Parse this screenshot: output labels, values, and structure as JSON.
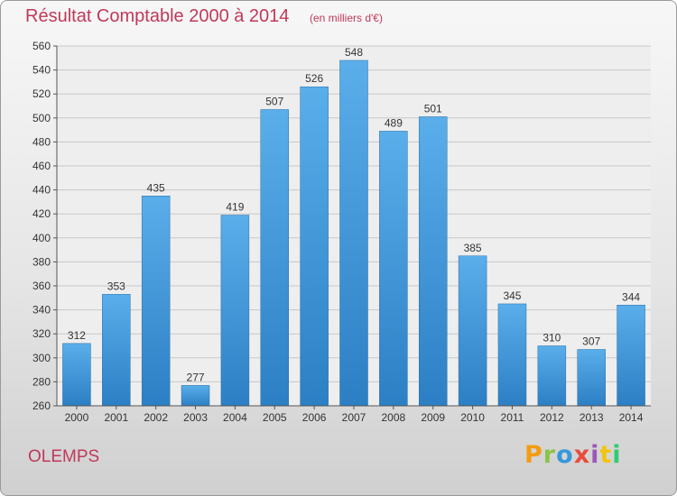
{
  "header": {
    "title": "Résultat Comptable 2000 à 2014",
    "unit": "(en milliers d'€)"
  },
  "footer": {
    "place": "OLEMPS",
    "logo": "Proxiti"
  },
  "colors": {
    "title": "#c0395a",
    "bar_top": "#5aaeea",
    "bar_bottom": "#2c7fc4",
    "logo": [
      "#f39c12",
      "#8bc34a",
      "#3498db",
      "#e74c3c",
      "#9b59b6",
      "#f1c40f",
      "#2ecc71"
    ]
  },
  "chart_data": {
    "type": "bar",
    "categories": [
      "2000",
      "2001",
      "2002",
      "2003",
      "2004",
      "2005",
      "2006",
      "2007",
      "2008",
      "2009",
      "2010",
      "2011",
      "2012",
      "2013",
      "2014"
    ],
    "values": [
      312,
      353,
      435,
      277,
      419,
      507,
      526,
      548,
      489,
      501,
      385,
      345,
      310,
      307,
      344
    ],
    "title": "Résultat Comptable 2000 à 2014",
    "xlabel": "",
    "ylabel": "",
    "ylim": [
      260,
      560
    ],
    "yticks": [
      260,
      280,
      300,
      320,
      340,
      360,
      380,
      400,
      420,
      440,
      460,
      480,
      500,
      520,
      540,
      560
    ],
    "grid": true,
    "legend": "none"
  }
}
